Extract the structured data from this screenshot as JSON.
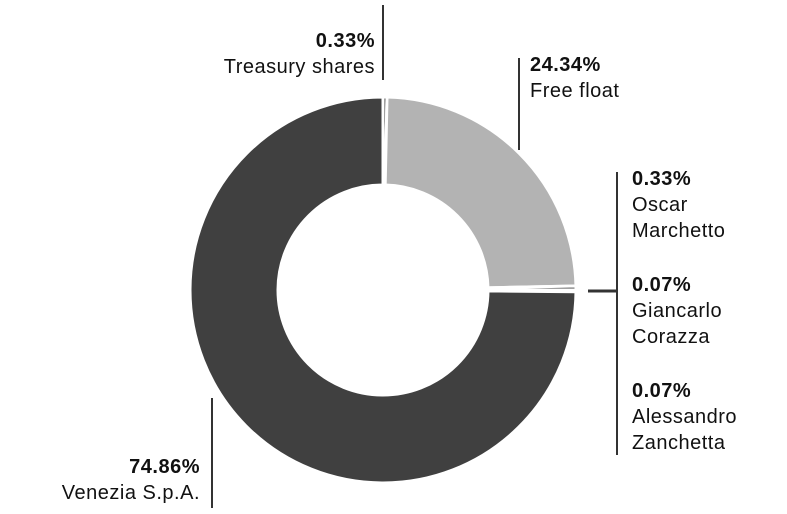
{
  "chart_data": {
    "type": "donut",
    "categories": [
      "Treasury shares",
      "Free float",
      "Oscar Marchetto",
      "Giancarlo Corazza",
      "Alessandro Zanchetta",
      "Venezia S.p.A."
    ],
    "values": [
      0.33,
      24.34,
      0.33,
      0.07,
      0.07,
      74.86
    ],
    "value_labels": [
      "0.33%",
      "24.34%",
      "0.33%",
      "0.07%",
      "0.07%",
      "74.86%"
    ],
    "colors": [
      "#404040",
      "#b3b3b3",
      "#404040",
      "#404040",
      "#404040",
      "#404040"
    ]
  }
}
